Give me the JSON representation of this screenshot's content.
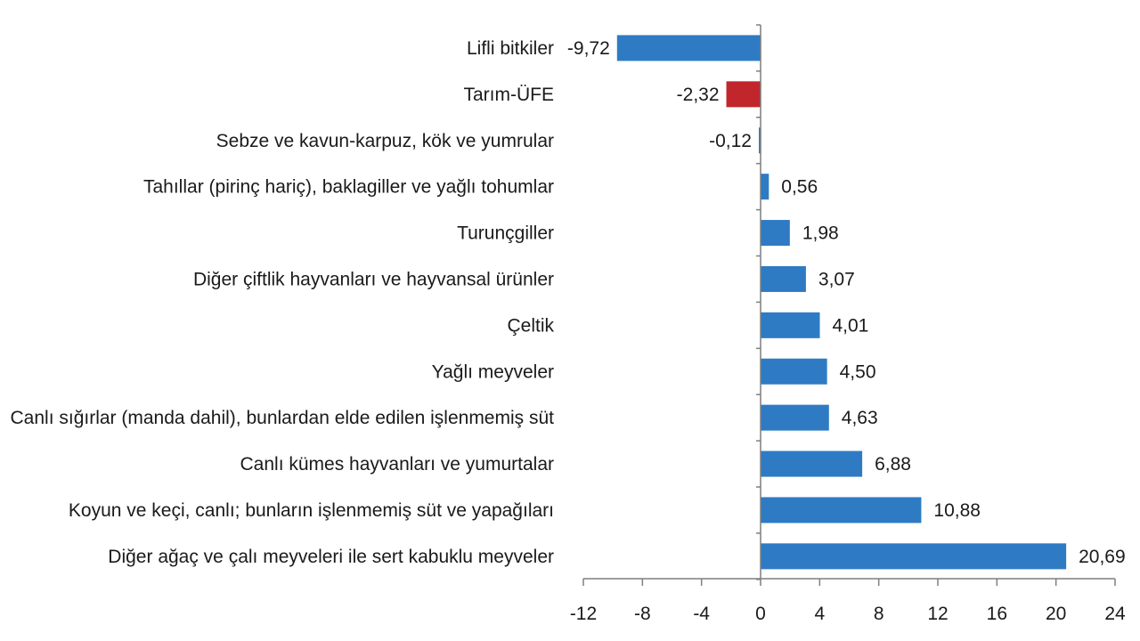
{
  "chart_data": {
    "type": "bar",
    "orientation": "horizontal",
    "categories": [
      "Lifli bitkiler",
      "Tarım-ÜFE",
      "Sebze ve kavun-karpuz, kök ve yumrular",
      "Tahıllar (pirinç hariç), baklagiller ve yağlı tohumlar",
      "Turunçgiller",
      "Diğer çiftlik hayvanları ve hayvansal ürünler",
      "Çeltik",
      "Yağlı meyveler",
      "Canlı sığırlar (manda dahil), bunlardan elde edilen işlenmemiş süt",
      "Canlı kümes hayvanları ve yumurtalar",
      "Koyun ve keçi, canlı; bunların işlenmemiş süt ve yapağıları",
      "Diğer ağaç ve çalı meyveleri ile sert kabuklu meyveler"
    ],
    "values": [
      -9.72,
      -2.32,
      -0.12,
      0.56,
      1.98,
      3.07,
      4.01,
      4.5,
      4.63,
      6.88,
      10.88,
      20.69
    ],
    "value_labels": [
      "-9,72",
      "-2,32",
      "-0,12",
      "0,56",
      "1,98",
      "3,07",
      "4,01",
      "4,50",
      "4,63",
      "6,88",
      "10,88",
      "20,69"
    ],
    "highlight_category": "Tarım-ÜFE",
    "xlim": [
      -12,
      24
    ],
    "xticks": [
      -12,
      -8,
      -4,
      0,
      4,
      8,
      12,
      16,
      20,
      24
    ],
    "xtick_labels": [
      "-12",
      "-8",
      "-4",
      "0",
      "4",
      "8",
      "12",
      "16",
      "20",
      "24"
    ],
    "grid": false,
    "legend": "none",
    "title": "",
    "xlabel": "",
    "ylabel": "",
    "colors": {
      "bar": "#2e7bc4",
      "highlight": "#c0262c",
      "axis": "#7f7f7f",
      "text": "#1a1a1a"
    }
  }
}
